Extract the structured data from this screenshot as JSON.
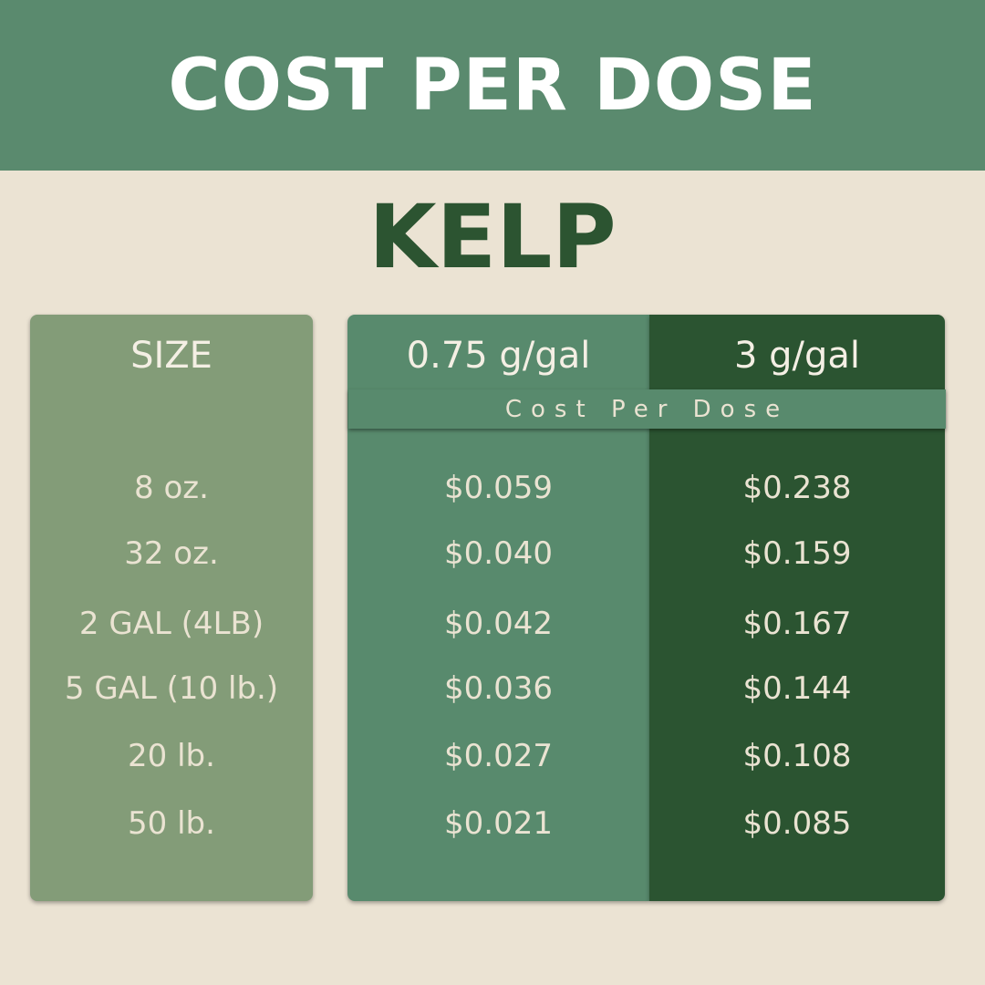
{
  "header": {
    "title": "COST PER DOSE"
  },
  "product": "KELP",
  "table": {
    "columns": [
      "SIZE",
      "0.75 g/gal",
      "3 g/gal"
    ],
    "subheader": "Cost Per Dose",
    "rows": [
      {
        "size": "8 oz.",
        "low": "$0.059",
        "high": "$0.238"
      },
      {
        "size": "32 oz.",
        "low": "$0.040",
        "high": "$0.159"
      },
      {
        "size": "2 GAL (4LB)",
        "low": "$0.042",
        "high": "$0.167"
      },
      {
        "size": "5 GAL (10 lb.)",
        "low": "$0.036",
        "high": "$0.144"
      },
      {
        "size": "20 lb.",
        "low": "$0.027",
        "high": "$0.108"
      },
      {
        "size": "50 lb.",
        "low": "$0.021",
        "high": "$0.085"
      }
    ]
  },
  "colors": {
    "banner": "#5a8a6e",
    "background": "#ebe3d3",
    "title": "#2c5431",
    "size_column": "#839c78",
    "low_column": "#588a6d",
    "high_column": "#2b5431"
  }
}
